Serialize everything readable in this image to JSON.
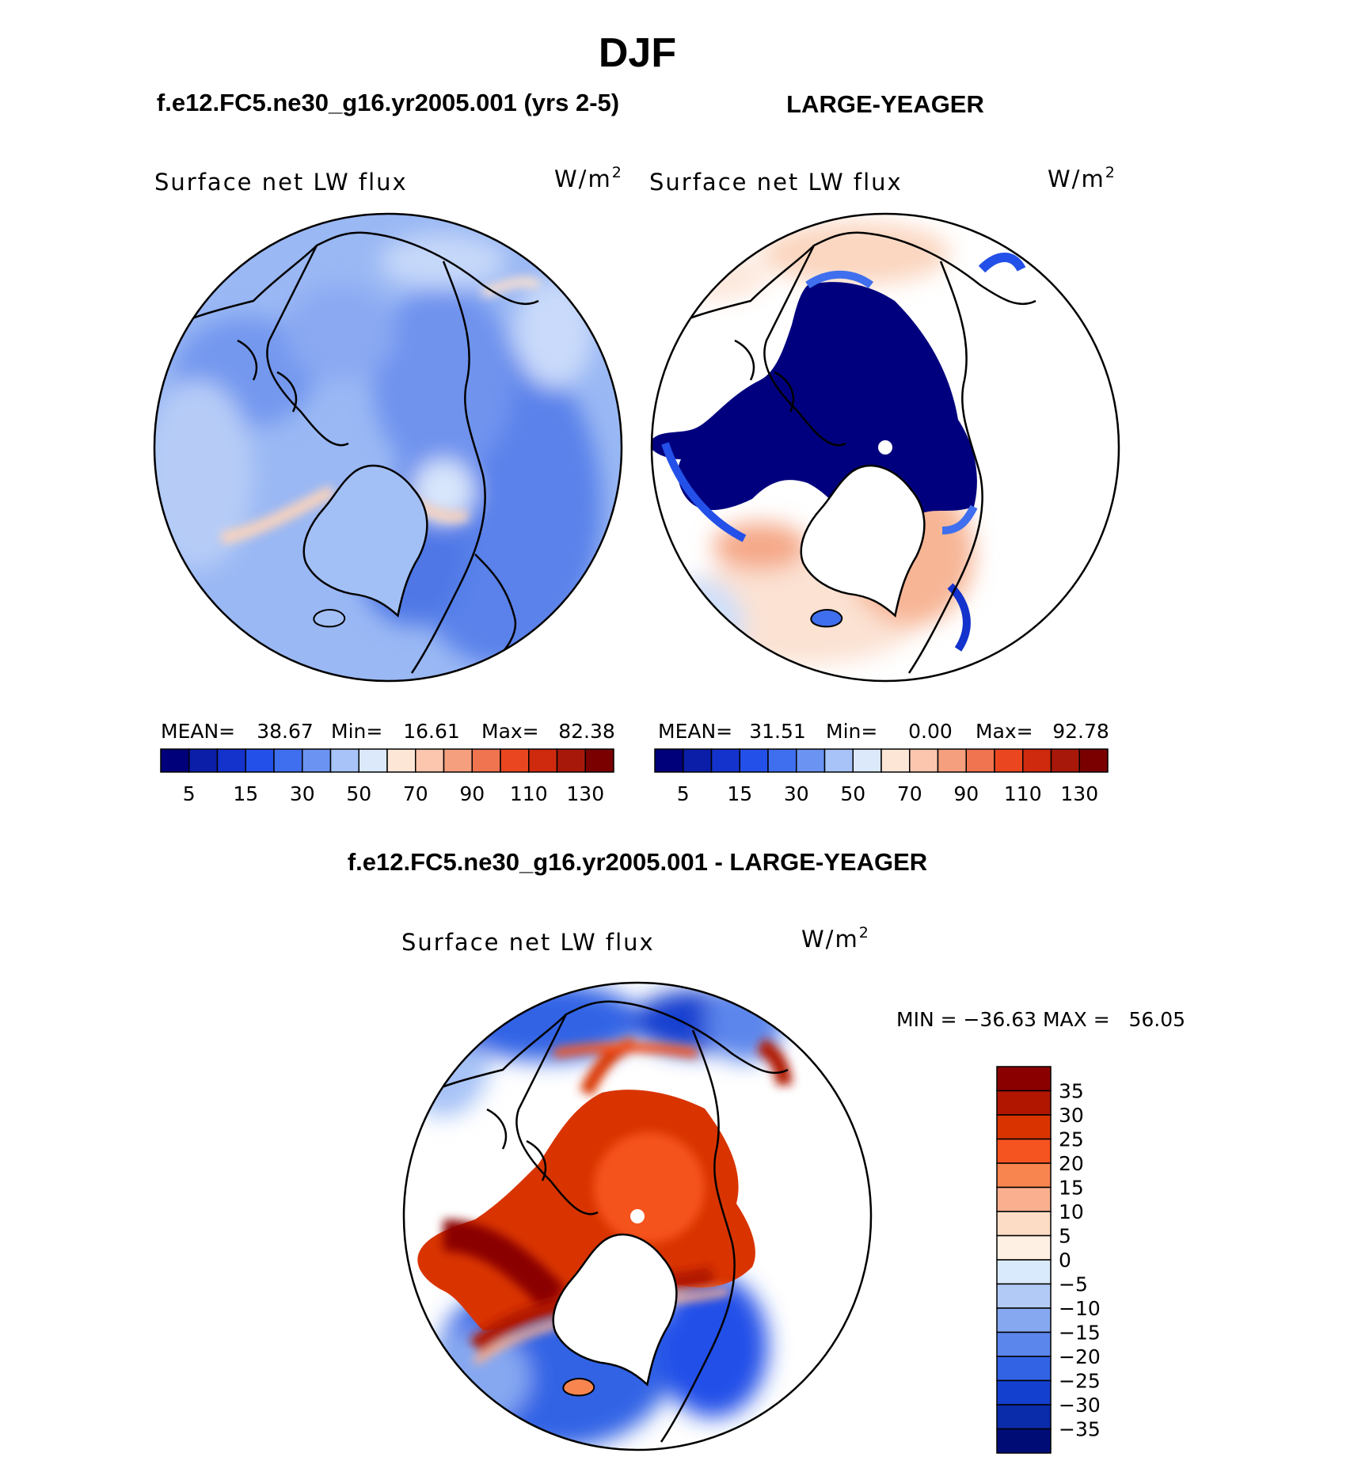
{
  "figure_title": "DJF",
  "panels": [
    {
      "id": "model",
      "title": "f.e12.FC5.ne30_g16.yr2005.001 (yrs 2-5)",
      "field_label": "Surface net LW flux",
      "units_text": "W/m",
      "units_sup": "2",
      "stats": {
        "mean_label": "MEAN=",
        "mean": "38.67",
        "min_label": "Min=",
        "min": "16.61",
        "max_label": "Max=",
        "max": "82.38"
      }
    },
    {
      "id": "obs",
      "title": "LARGE-YEAGER",
      "field_label": "Surface net LW flux",
      "units_text": "W/m",
      "units_sup": "2",
      "stats": {
        "mean_label": "MEAN=",
        "mean": "31.51",
        "min_label": "Min=",
        "min": "0.00",
        "max_label": "Max=",
        "max": "92.78"
      }
    },
    {
      "id": "diff",
      "title": "f.e12.FC5.ne30_g16.yr2005.001 - LARGE-YEAGER",
      "field_label": "Surface net LW flux",
      "units_text": "W/m",
      "units_sup": "2",
      "minmax": "MIN = −36.63 MAX =   56.05"
    }
  ],
  "abs_colorbar": {
    "colors": [
      "#00007a",
      "#0a1ea8",
      "#1432cc",
      "#2350e8",
      "#3f6fee",
      "#6a93f2",
      "#a7c3f7",
      "#dbe9fb",
      "#fde6d6",
      "#fbc6ad",
      "#f59f7e",
      "#f0744f",
      "#ea4720",
      "#cf2a0e",
      "#a8180a",
      "#7a0000"
    ],
    "tick_labels": [
      "5",
      "15",
      "30",
      "50",
      "70",
      "90",
      "110",
      "130"
    ]
  },
  "diff_colorbar": {
    "colors_top_to_bottom": [
      "#8a0000",
      "#b01600",
      "#d93400",
      "#f5531f",
      "#f88550",
      "#fab08f",
      "#fcdcc5",
      "#fff0e4",
      "#d8eafb",
      "#b2cbf6",
      "#86a8f1",
      "#5b86ec",
      "#3363e5",
      "#1440d0",
      "#0a2baa",
      "#000c76"
    ],
    "tick_labels": [
      "35",
      "30",
      "25",
      "20",
      "15",
      "10",
      "5",
      "0",
      "−5",
      "−10",
      "−15",
      "−20",
      "−25",
      "−30",
      "−35"
    ]
  },
  "region_names": [
    "greenland-icon",
    "arctic-ocean-icon",
    "iceland-icon",
    "pole-marker-icon"
  ]
}
